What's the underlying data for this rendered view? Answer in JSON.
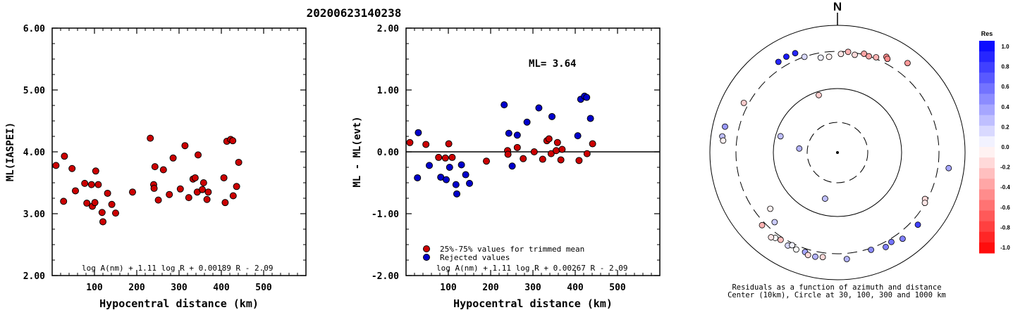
{
  "title": "20200623140238",
  "chart_data": [
    {
      "type": "scatter",
      "xlabel": "Hypocentral distance (km)",
      "ylabel": "ML(IASPEI)",
      "xlim": [
        0,
        600
      ],
      "ylim": [
        2.0,
        6.0
      ],
      "xticks": [
        "100",
        "200",
        "300",
        "400",
        "500"
      ],
      "yticks": [
        "2.00",
        "3.00",
        "4.00",
        "5.00",
        "6.00"
      ],
      "formula": "log A(nm) + 1.11 log R + 0.00189 R - 2.09",
      "marker_color": "#cc0000",
      "points": [
        [
          9,
          3.78
        ],
        [
          29,
          3.93
        ],
        [
          27,
          3.2
        ],
        [
          47,
          3.73
        ],
        [
          55,
          3.37
        ],
        [
          77,
          3.49
        ],
        [
          82,
          3.17
        ],
        [
          93,
          3.47
        ],
        [
          95,
          3.12
        ],
        [
          101,
          3.18
        ],
        [
          103,
          3.69
        ],
        [
          109,
          3.47
        ],
        [
          118,
          3.02
        ],
        [
          120,
          2.87
        ],
        [
          131,
          3.33
        ],
        [
          141,
          3.15
        ],
        [
          150,
          3.01
        ],
        [
          190,
          3.35
        ],
        [
          232,
          4.22
        ],
        [
          240,
          3.47
        ],
        [
          241,
          3.41
        ],
        [
          243,
          3.76
        ],
        [
          251,
          3.22
        ],
        [
          263,
          3.71
        ],
        [
          277,
          3.31
        ],
        [
          286,
          3.9
        ],
        [
          303,
          3.4
        ],
        [
          314,
          4.1
        ],
        [
          323,
          3.26
        ],
        [
          333,
          3.56
        ],
        [
          338,
          3.58
        ],
        [
          343,
          3.35
        ],
        [
          345,
          3.95
        ],
        [
          355,
          3.39
        ],
        [
          358,
          3.5
        ],
        [
          366,
          3.23
        ],
        [
          369,
          3.35
        ],
        [
          406,
          3.58
        ],
        [
          409,
          3.18
        ],
        [
          413,
          4.17
        ],
        [
          422,
          4.2
        ],
        [
          427,
          4.18
        ],
        [
          428,
          3.29
        ],
        [
          436,
          3.44
        ],
        [
          441,
          3.83
        ]
      ]
    },
    {
      "type": "scatter",
      "xlabel": "Hypocentral distance (km)",
      "ylabel": "ML - ML(evt)",
      "xlim": [
        0,
        600
      ],
      "ylim": [
        -2.0,
        2.0
      ],
      "xticks": [
        "100",
        "200",
        "300",
        "400",
        "500"
      ],
      "yticks": [
        "-2.00",
        "-1.00",
        "0.00",
        "1.00",
        "2.00"
      ],
      "annotation": "ML= 3.64",
      "legend": [
        "25%-75% values for trimmed mean",
        "Rejected values"
      ],
      "formula": "log A(nm) + 1.11 log R + 0.00267 R - 2.09",
      "series": [
        {
          "name": "25%-75% values for trimmed mean",
          "color": "#cc0000",
          "points": [
            [
              9,
              0.15
            ],
            [
              47,
              0.12
            ],
            [
              77,
              -0.09
            ],
            [
              93,
              -0.1
            ],
            [
              101,
              0.13
            ],
            [
              109,
              -0.09
            ],
            [
              190,
              -0.15
            ],
            [
              240,
              0.02
            ],
            [
              241,
              -0.04
            ],
            [
              263,
              0.07
            ],
            [
              277,
              -0.11
            ],
            [
              303,
              0.0
            ],
            [
              323,
              -0.12
            ],
            [
              333,
              0.18
            ],
            [
              338,
              0.21
            ],
            [
              343,
              -0.03
            ],
            [
              355,
              0.02
            ],
            [
              358,
              0.15
            ],
            [
              366,
              -0.13
            ],
            [
              369,
              0.04
            ],
            [
              409,
              -0.14
            ],
            [
              428,
              -0.03
            ],
            [
              441,
              0.13
            ]
          ]
        },
        {
          "name": "Rejected values",
          "color": "#0000cc",
          "points": [
            [
              27,
              -0.42
            ],
            [
              29,
              0.31
            ],
            [
              55,
              -0.22
            ],
            [
              82,
              -0.41
            ],
            [
              95,
              -0.45
            ],
            [
              103,
              -0.25
            ],
            [
              118,
              -0.53
            ],
            [
              120,
              -0.68
            ],
            [
              131,
              -0.21
            ],
            [
              141,
              -0.37
            ],
            [
              150,
              -0.51
            ],
            [
              232,
              0.76
            ],
            [
              243,
              0.3
            ],
            [
              251,
              -0.23
            ],
            [
              263,
              0.27
            ],
            [
              286,
              0.48
            ],
            [
              314,
              0.71
            ],
            [
              345,
              0.57
            ],
            [
              406,
              0.26
            ],
            [
              413,
              0.85
            ],
            [
              422,
              0.9
            ],
            [
              427,
              0.88
            ],
            [
              436,
              0.54
            ]
          ]
        }
      ]
    },
    {
      "type": "scatter",
      "projection": "polar-azimuth",
      "north_label": "N",
      "caption_line1": "Residuals as a function of azimuth and distance",
      "caption_line2": "Center (10km), Circle at 30, 100, 300 and 1000 km",
      "rings_km": [
        30,
        100,
        300,
        1000
      ],
      "colorbar_label": "Res",
      "colorbar_ticks": [
        "1.0",
        "0.8",
        "0.6",
        "0.4",
        "0.2",
        "0.0",
        "-0.2",
        "-0.4",
        "-0.6",
        "-0.8",
        "-1.0"
      ],
      "stations": [
        {
          "az": 337,
          "dist": 409,
          "res": 0.85
        },
        {
          "az": 332,
          "dist": 422,
          "res": 0.9
        },
        {
          "az": 327,
          "dist": 413,
          "res": 0.85
        },
        {
          "az": 341,
          "dist": 300,
          "res": 0.15
        },
        {
          "az": 350,
          "dist": 260,
          "res": 0.05
        },
        {
          "az": 355,
          "dist": 258,
          "res": -0.05
        },
        {
          "az": 2,
          "dist": 278,
          "res": -0.1
        },
        {
          "az": 6,
          "dist": 300,
          "res": -0.3
        },
        {
          "az": 10,
          "dist": 283,
          "res": -0.15
        },
        {
          "az": 15,
          "dist": 315,
          "res": -0.35
        },
        {
          "az": 18,
          "dist": 300,
          "res": -0.35
        },
        {
          "az": 22,
          "dist": 322,
          "res": -0.3
        },
        {
          "az": 27,
          "dist": 400,
          "res": -0.45
        },
        {
          "az": 28,
          "dist": 376,
          "res": -0.45
        },
        {
          "az": 38,
          "dist": 530,
          "res": -0.4
        },
        {
          "az": 298,
          "dist": 370,
          "res": -0.2
        },
        {
          "az": 283,
          "dist": 570,
          "res": 0.4
        },
        {
          "az": 278,
          "dist": 594,
          "res": 0.25
        },
        {
          "az": 276,
          "dist": 558,
          "res": -0.05
        },
        {
          "az": 342,
          "dist": 88,
          "res": -0.2
        },
        {
          "az": 286,
          "dist": 84,
          "res": 0.25
        },
        {
          "az": 276,
          "dist": 40,
          "res": 0.3
        },
        {
          "az": 195,
          "dist": 56,
          "res": 0.25
        },
        {
          "az": 98,
          "dist": 494,
          "res": 0.35
        },
        {
          "az": 118,
          "dist": 280,
          "res": -0.15
        },
        {
          "az": 120,
          "dist": 295,
          "res": -0.1
        },
        {
          "az": 230,
          "dist": 200,
          "res": -0.05
        },
        {
          "az": 222,
          "dist": 240,
          "res": 0.2
        },
        {
          "az": 226,
          "dist": 350,
          "res": -0.3
        },
        {
          "az": 216,
          "dist": 366,
          "res": 0.0
        },
        {
          "az": 213,
          "dist": 342,
          "res": -0.25
        },
        {
          "az": 208,
          "dist": 363,
          "res": 0.15
        },
        {
          "az": 206,
          "dist": 328,
          "res": 0.05
        },
        {
          "az": 203,
          "dist": 362,
          "res": 0.0
        },
        {
          "az": 198,
          "dist": 351,
          "res": 0.35
        },
        {
          "az": 196,
          "dist": 385,
          "res": -0.15
        },
        {
          "az": 192,
          "dist": 383,
          "res": 0.3
        },
        {
          "az": 188,
          "dist": 367,
          "res": -0.15
        },
        {
          "az": 175,
          "dist": 390,
          "res": 0.3
        },
        {
          "az": 161,
          "dist": 324,
          "res": 0.45
        },
        {
          "az": 153,
          "dist": 375,
          "res": 0.5
        },
        {
          "az": 149,
          "dist": 346,
          "res": 0.55
        },
        {
          "az": 143,
          "dist": 409,
          "res": 0.5
        },
        {
          "az": 132,
          "dist": 408,
          "res": 0.75
        },
        {
          "az": 218,
          "dist": 402,
          "res": -0.1
        }
      ]
    }
  ]
}
